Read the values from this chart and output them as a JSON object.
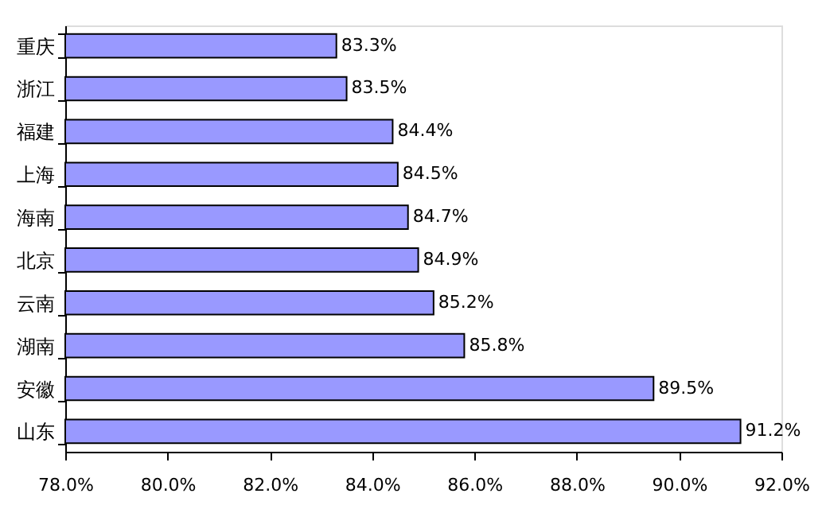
{
  "chart_data": {
    "type": "bar",
    "orientation": "horizontal",
    "categories": [
      "重庆",
      "浙江",
      "福建",
      "上海",
      "海南",
      "北京",
      "云南",
      "湖南",
      "安徽",
      "山东"
    ],
    "values": [
      83.3,
      83.5,
      84.4,
      84.5,
      84.7,
      84.9,
      85.2,
      85.8,
      89.5,
      91.2
    ],
    "value_labels": [
      "83.3%",
      "83.5%",
      "84.4%",
      "84.5%",
      "84.7%",
      "84.9%",
      "85.2%",
      "85.8%",
      "89.5%",
      "91.2%"
    ],
    "color": "#9999ff",
    "xlim": [
      78,
      92
    ],
    "xticks": [
      {
        "value": 78,
        "label": "78.0%"
      },
      {
        "value": 80,
        "label": "80.0%"
      },
      {
        "value": 82,
        "label": "82.0%"
      },
      {
        "value": 84,
        "label": "84.0%"
      },
      {
        "value": 86,
        "label": "86.0%"
      },
      {
        "value": 88,
        "label": "88.0%"
      },
      {
        "value": 90,
        "label": "90.0%"
      },
      {
        "value": 92,
        "label": "92.0%"
      }
    ],
    "grid": false
  }
}
